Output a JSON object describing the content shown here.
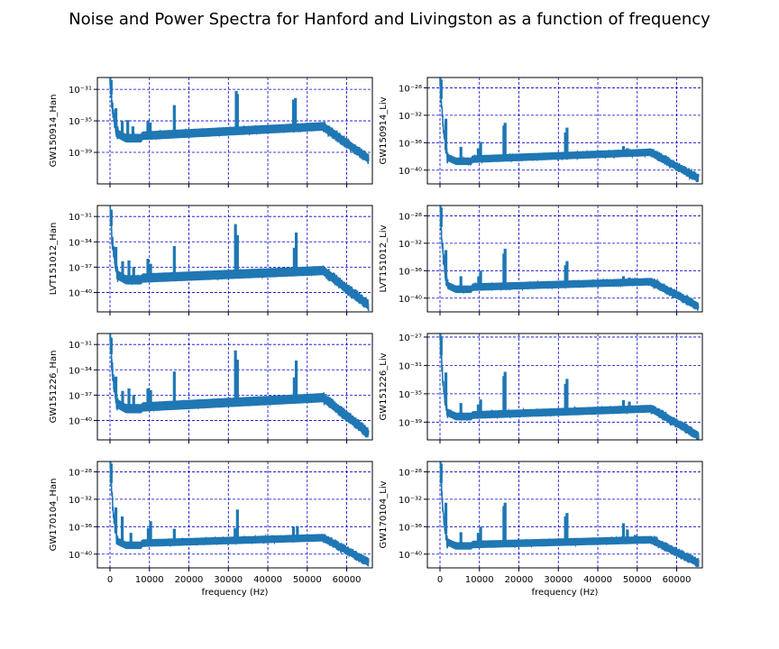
{
  "title": "Noise and Power Spectra for Hanford and Livingston as a function of frequency",
  "colors": {
    "line": "#1f77b4",
    "grid": "#0000cc",
    "axes": "#000000",
    "background": "#ffffff"
  },
  "chart_data": [
    {
      "type": "line",
      "ylabel": "GW150914_Han",
      "xlabel": "",
      "yscale": "log",
      "xlim": [
        -3200,
        66500
      ],
      "ylim_exp": [
        -43,
        -29.5
      ],
      "xticks": [
        0,
        10000,
        20000,
        30000,
        40000,
        50000,
        60000
      ],
      "xticklabels": [],
      "yticks": [
        -31,
        -35,
        -39
      ],
      "yticklabels": [
        "10⁻³¹",
        "10⁻³⁵",
        "10⁻³⁹"
      ],
      "grid": true,
      "series": [
        {
          "start": -30,
          "dip": -37.2,
          "plateau_a": -36.9,
          "plateau_b": -35.7,
          "roll_start": 54000,
          "end": -39.8,
          "spikes": [
            [
              300,
              -29.8
            ],
            [
              1500,
              -33.4
            ],
            [
              3100,
              -35.0
            ],
            [
              4500,
              -34.9
            ],
            [
              5800,
              -35.7
            ],
            [
              9600,
              -35.0
            ],
            [
              10200,
              -35.2
            ],
            [
              16300,
              -33.0
            ],
            [
              32000,
              -31.2
            ],
            [
              32300,
              -31.6
            ],
            [
              46500,
              -32.3
            ],
            [
              47000,
              -32.1
            ]
          ]
        }
      ]
    },
    {
      "type": "line",
      "ylabel": "GW150914_Liv",
      "xlabel": "",
      "yscale": "log",
      "xlim": [
        -3200,
        66500
      ],
      "ylim_exp": [
        -42,
        -26.5
      ],
      "xticks": [
        0,
        10000,
        20000,
        30000,
        40000,
        50000,
        60000
      ],
      "xticklabels": [],
      "yticks": [
        -28,
        -32,
        -36,
        -40
      ],
      "yticklabels": [
        "10⁻²⁸",
        "10⁻³²",
        "10⁻³⁶",
        "10⁻⁴⁰"
      ],
      "grid": true,
      "series": [
        {
          "start": -26.8,
          "dip": -38.7,
          "plateau_a": -38.4,
          "plateau_b": -37.4,
          "roll_start": 53500,
          "end": -41.2,
          "spikes": [
            [
              300,
              -26.8
            ],
            [
              1500,
              -32.5
            ],
            [
              5300,
              -36.6
            ],
            [
              9700,
              -36.8
            ],
            [
              10300,
              -35.9
            ],
            [
              16200,
              -33.5
            ],
            [
              16500,
              -33.1
            ],
            [
              31800,
              -34.5
            ],
            [
              32200,
              -33.8
            ],
            [
              46500,
              -36.5
            ],
            [
              47500,
              -36.8
            ],
            [
              49500,
              -37.4
            ]
          ]
        }
      ]
    },
    {
      "type": "line",
      "ylabel": "LVT151012_Han",
      "xlabel": "",
      "yscale": "log",
      "xlim": [
        -3200,
        66500
      ],
      "ylim_exp": [
        -42.3,
        -29.7
      ],
      "xticks": [
        0,
        10000,
        20000,
        30000,
        40000,
        50000,
        60000
      ],
      "xticklabels": [],
      "yticks": [
        -31,
        -34,
        -37,
        -40
      ],
      "yticklabels": [
        "10⁻³¹",
        "10⁻³⁴",
        "10⁻³⁷",
        "10⁻⁴⁰"
      ],
      "grid": true,
      "series": [
        {
          "start": -30.2,
          "dip": -38.5,
          "plateau_a": -38.3,
          "plateau_b": -37.4,
          "roll_start": 54000,
          "end": -41.5,
          "spikes": [
            [
              300,
              -30.2
            ],
            [
              1500,
              -34.6
            ],
            [
              3200,
              -36.3
            ],
            [
              4800,
              -36.2
            ],
            [
              6000,
              -37.0
            ],
            [
              9600,
              -36.0
            ],
            [
              10300,
              -36.6
            ],
            [
              16300,
              -34.5
            ],
            [
              31800,
              -31.9
            ],
            [
              32300,
              -33.2
            ],
            [
              46700,
              -34.7
            ],
            [
              47200,
              -32.9
            ]
          ]
        }
      ]
    },
    {
      "type": "line",
      "ylabel": "LVT151012_Liv",
      "xlabel": "",
      "yscale": "log",
      "xlim": [
        -3200,
        66500
      ],
      "ylim_exp": [
        -42,
        -26.5
      ],
      "xticks": [
        0,
        10000,
        20000,
        30000,
        40000,
        50000,
        60000
      ],
      "xticklabels": [],
      "yticks": [
        -28,
        -32,
        -36,
        -40
      ],
      "yticklabels": [
        "10⁻²⁸",
        "10⁻³²",
        "10⁻³⁶",
        "10⁻⁴⁰"
      ],
      "grid": true,
      "series": [
        {
          "start": -26.8,
          "dip": -38.7,
          "plateau_a": -38.4,
          "plateau_b": -37.6,
          "roll_start": 53500,
          "end": -41.2,
          "spikes": [
            [
              300,
              -26.8
            ],
            [
              1500,
              -33.0
            ],
            [
              5300,
              -36.8
            ],
            [
              9800,
              -36.8
            ],
            [
              10300,
              -36.0
            ],
            [
              16200,
              -33.5
            ],
            [
              16500,
              -32.8
            ],
            [
              31800,
              -35.2
            ],
            [
              32200,
              -34.6
            ],
            [
              46500,
              -36.8
            ],
            [
              48000,
              -37.0
            ],
            [
              49500,
              -37.4
            ]
          ]
        }
      ]
    },
    {
      "type": "line",
      "ylabel": "GW151226_Han",
      "xlabel": "",
      "yscale": "log",
      "xlim": [
        -3200,
        66500
      ],
      "ylim_exp": [
        -42.3,
        -29.7
      ],
      "xticks": [
        0,
        10000,
        20000,
        30000,
        40000,
        50000,
        60000
      ],
      "xticklabels": [],
      "yticks": [
        -31,
        -34,
        -37,
        -40
      ],
      "yticklabels": [
        "10⁻³¹",
        "10⁻³⁴",
        "10⁻³⁷",
        "10⁻⁴⁰"
      ],
      "grid": true,
      "series": [
        {
          "start": -30.2,
          "dip": -38.6,
          "plateau_a": -38.4,
          "plateau_b": -37.3,
          "roll_start": 54000,
          "end": -41.5,
          "spikes": [
            [
              300,
              -30.2
            ],
            [
              1500,
              -34.8
            ],
            [
              3200,
              -36.5
            ],
            [
              4800,
              -36.2
            ],
            [
              6000,
              -37.0
            ],
            [
              9600,
              -36.2
            ],
            [
              10300,
              -36.4
            ],
            [
              16300,
              -34.2
            ],
            [
              31800,
              -31.7
            ],
            [
              32300,
              -32.8
            ],
            [
              46700,
              -34.9
            ],
            [
              47200,
              -32.9
            ]
          ]
        }
      ]
    },
    {
      "type": "line",
      "ylabel": "GW151226_Liv",
      "xlabel": "",
      "yscale": "log",
      "xlim": [
        -3200,
        66500
      ],
      "ylim_exp": [
        -41.5,
        -26.5
      ],
      "xticks": [
        0,
        10000,
        20000,
        30000,
        40000,
        50000,
        60000
      ],
      "xticklabels": [],
      "yticks": [
        -27,
        -31,
        -35,
        -39
      ],
      "yticklabels": [
        "10⁻²⁷",
        "10⁻³¹",
        "10⁻³⁵",
        "10⁻³⁹"
      ],
      "grid": true,
      "series": [
        {
          "start": -26.9,
          "dip": -38.2,
          "plateau_a": -38.0,
          "plateau_b": -37.1,
          "roll_start": 53500,
          "end": -40.9,
          "spikes": [
            [
              300,
              -26.9
            ],
            [
              1500,
              -32.0
            ],
            [
              5300,
              -36.3
            ],
            [
              9700,
              -36.5
            ],
            [
              10300,
              -35.8
            ],
            [
              16200,
              -32.5
            ],
            [
              16500,
              -31.9
            ],
            [
              31800,
              -33.6
            ],
            [
              32200,
              -32.9
            ],
            [
              46500,
              -35.9
            ],
            [
              48000,
              -36.1
            ],
            [
              49500,
              -36.7
            ]
          ]
        }
      ]
    },
    {
      "type": "line",
      "ylabel": "GW170104_Han",
      "xlabel": "frequency (Hz)",
      "yscale": "log",
      "xlim": [
        -3200,
        66500
      ],
      "ylim_exp": [
        -42,
        -26.5
      ],
      "xticks": [
        0,
        10000,
        20000,
        30000,
        40000,
        50000,
        60000
      ],
      "xticklabels": [
        "0",
        "10000",
        "20000",
        "30000",
        "40000",
        "50000",
        "60000"
      ],
      "yticks": [
        -28,
        -32,
        -36,
        -40
      ],
      "yticklabels": [
        "10⁻²⁸",
        "10⁻³²",
        "10⁻³⁶",
        "10⁻⁴⁰"
      ],
      "grid": true,
      "series": [
        {
          "start": -26.8,
          "dip": -38.7,
          "plateau_a": -38.4,
          "plateau_b": -37.6,
          "roll_start": 54000,
          "end": -41.2,
          "spikes": [
            [
              300,
              -26.8
            ],
            [
              1500,
              -33.2
            ],
            [
              3100,
              -34.5
            ],
            [
              5300,
              -36.9
            ],
            [
              9700,
              -36.2
            ],
            [
              10300,
              -35.2
            ],
            [
              16300,
              -36.3
            ],
            [
              31700,
              -36.2
            ],
            [
              32300,
              -33.5
            ],
            [
              46500,
              -36.0
            ],
            [
              47500,
              -35.9
            ]
          ]
        }
      ]
    },
    {
      "type": "line",
      "ylabel": "GW170104_Liv",
      "xlabel": "frequency (Hz)",
      "yscale": "log",
      "xlim": [
        -3200,
        66500
      ],
      "ylim_exp": [
        -42,
        -26.5
      ],
      "xticks": [
        0,
        10000,
        20000,
        30000,
        40000,
        50000,
        60000
      ],
      "xticklabels": [
        "0",
        "10000",
        "20000",
        "30000",
        "40000",
        "50000",
        "60000"
      ],
      "yticks": [
        -28,
        -32,
        -36,
        -40
      ],
      "yticklabels": [
        "10⁻²⁸",
        "10⁻³²",
        "10⁻³⁶",
        "10⁻⁴⁰"
      ],
      "grid": true,
      "series": [
        {
          "start": -26.8,
          "dip": -38.8,
          "plateau_a": -38.6,
          "plateau_b": -37.9,
          "roll_start": 53500,
          "end": -41.3,
          "spikes": [
            [
              300,
              -26.8
            ],
            [
              1500,
              -32.5
            ],
            [
              5300,
              -36.8
            ],
            [
              9700,
              -36.9
            ],
            [
              10300,
              -36.0
            ],
            [
              16200,
              -33.0
            ],
            [
              16500,
              -32.5
            ],
            [
              31800,
              -34.5
            ],
            [
              32200,
              -34.0
            ],
            [
              46500,
              -35.5
            ],
            [
              47500,
              -36.4
            ],
            [
              49500,
              -37.2
            ]
          ]
        }
      ]
    }
  ]
}
